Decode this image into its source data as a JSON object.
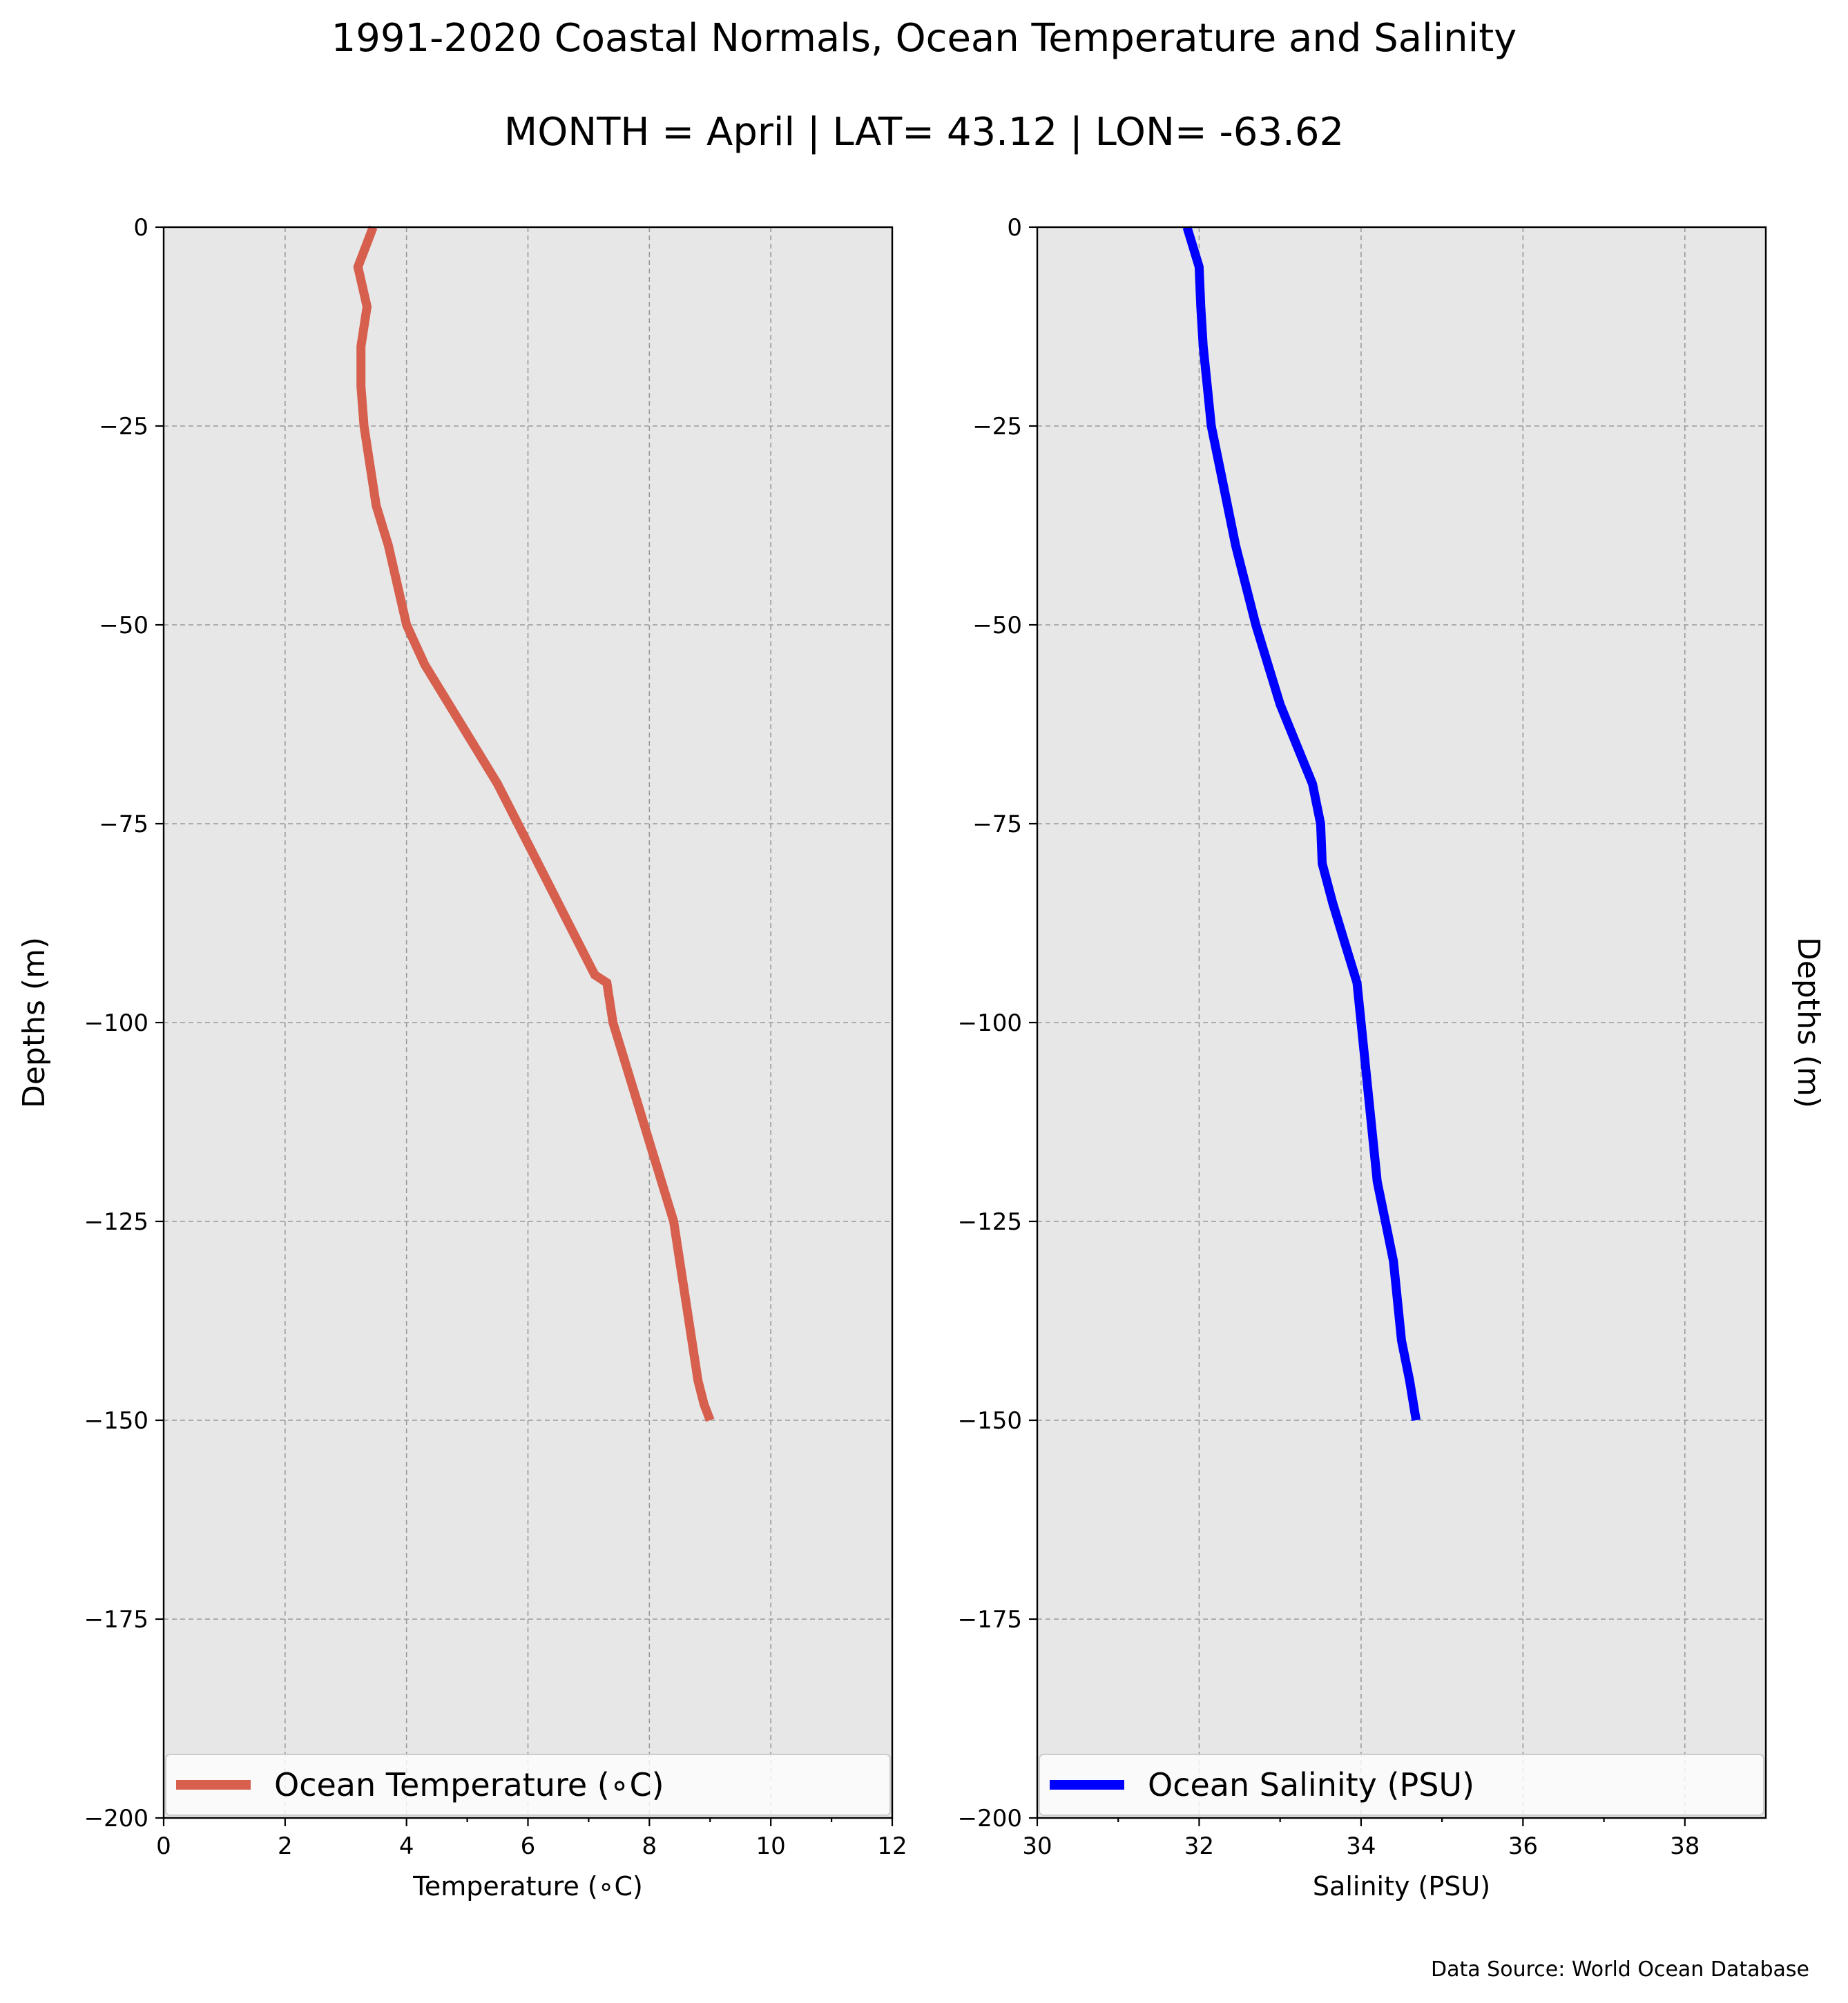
{
  "title_line1": "1991-2020 Coastal Normals, Ocean Temperature and Salinity",
  "title_line2": "MONTH = April | LAT= 43.12 | LON= -63.62",
  "source_note": "Data Source: World Ocean Database",
  "colors": {
    "background": "#e7e7e7",
    "temperature": "#d65f4e",
    "salinity": "#0000ff",
    "grid": "#9a9a9a"
  },
  "chart_data": [
    {
      "type": "line",
      "xlabel": "Temperature ($^\\circ$C)",
      "xlabel_display": "Temperature (∘C)",
      "ylabel": "Depths (m)",
      "ylabel_position": "left",
      "xlim": [
        0,
        12
      ],
      "ylim": [
        -200,
        0
      ],
      "xticks": [
        0,
        2,
        4,
        6,
        8,
        10,
        12
      ],
      "yticks": [
        0,
        -25,
        -50,
        -75,
        -100,
        -125,
        -150,
        -175,
        -200
      ],
      "xminor": [
        5,
        7,
        9,
        11
      ],
      "grid": true,
      "legend_placement": "lower center",
      "series": [
        {
          "name": "Ocean Temperature (∘C)",
          "color": "#d65f4e",
          "x": [
            3.45,
            3.2,
            3.35,
            3.25,
            3.25,
            3.3,
            3.4,
            3.5,
            3.7,
            4.0,
            4.3,
            4.7,
            5.1,
            5.5,
            5.9,
            6.3,
            6.7,
            7.1,
            7.3,
            7.4,
            7.6,
            7.8,
            8.0,
            8.2,
            8.4,
            8.5,
            8.6,
            8.7,
            8.8,
            8.9,
            9.0
          ],
          "y": [
            0,
            -5,
            -10,
            -15,
            -20,
            -25,
            -30,
            -35,
            -40,
            -50,
            -55,
            -60,
            -65,
            -70,
            -76,
            -82,
            -88,
            -94,
            -95,
            -100,
            -105,
            -110,
            -115,
            -120,
            -125,
            -130,
            -135,
            -140,
            -145,
            -148,
            -150
          ]
        }
      ]
    },
    {
      "type": "line",
      "xlabel": "Salinity (PSU)",
      "xlabel_display": "Salinity (PSU)",
      "ylabel": "Depths (m)",
      "ylabel_position": "right",
      "xlim": [
        30,
        39
      ],
      "ylim": [
        -200,
        0
      ],
      "xticks": [
        30,
        32,
        34,
        36,
        38
      ],
      "yticks": [
        0,
        -25,
        -50,
        -75,
        -100,
        -125,
        -150,
        -175,
        -200
      ],
      "xminor": [
        31,
        33,
        35,
        37
      ],
      "grid": true,
      "legend_placement": "lower center",
      "series": [
        {
          "name": "Ocean Salinity (PSU)",
          "color": "#0000ff",
          "x": [
            31.85,
            32.0,
            32.02,
            32.05,
            32.1,
            32.15,
            32.25,
            32.35,
            32.45,
            32.7,
            32.85,
            33.0,
            33.2,
            33.4,
            33.5,
            33.52,
            33.65,
            33.8,
            33.95,
            34.0,
            34.1,
            34.2,
            34.3,
            34.4,
            34.5,
            34.6,
            34.68
          ],
          "y": [
            0,
            -5,
            -10,
            -15,
            -20,
            -25,
            -30,
            -35,
            -40,
            -50,
            -55,
            -60,
            -65,
            -70,
            -75,
            -80,
            -85,
            -90,
            -95,
            -100,
            -110,
            -120,
            -125,
            -130,
            -140,
            -145,
            -150
          ]
        }
      ]
    }
  ]
}
